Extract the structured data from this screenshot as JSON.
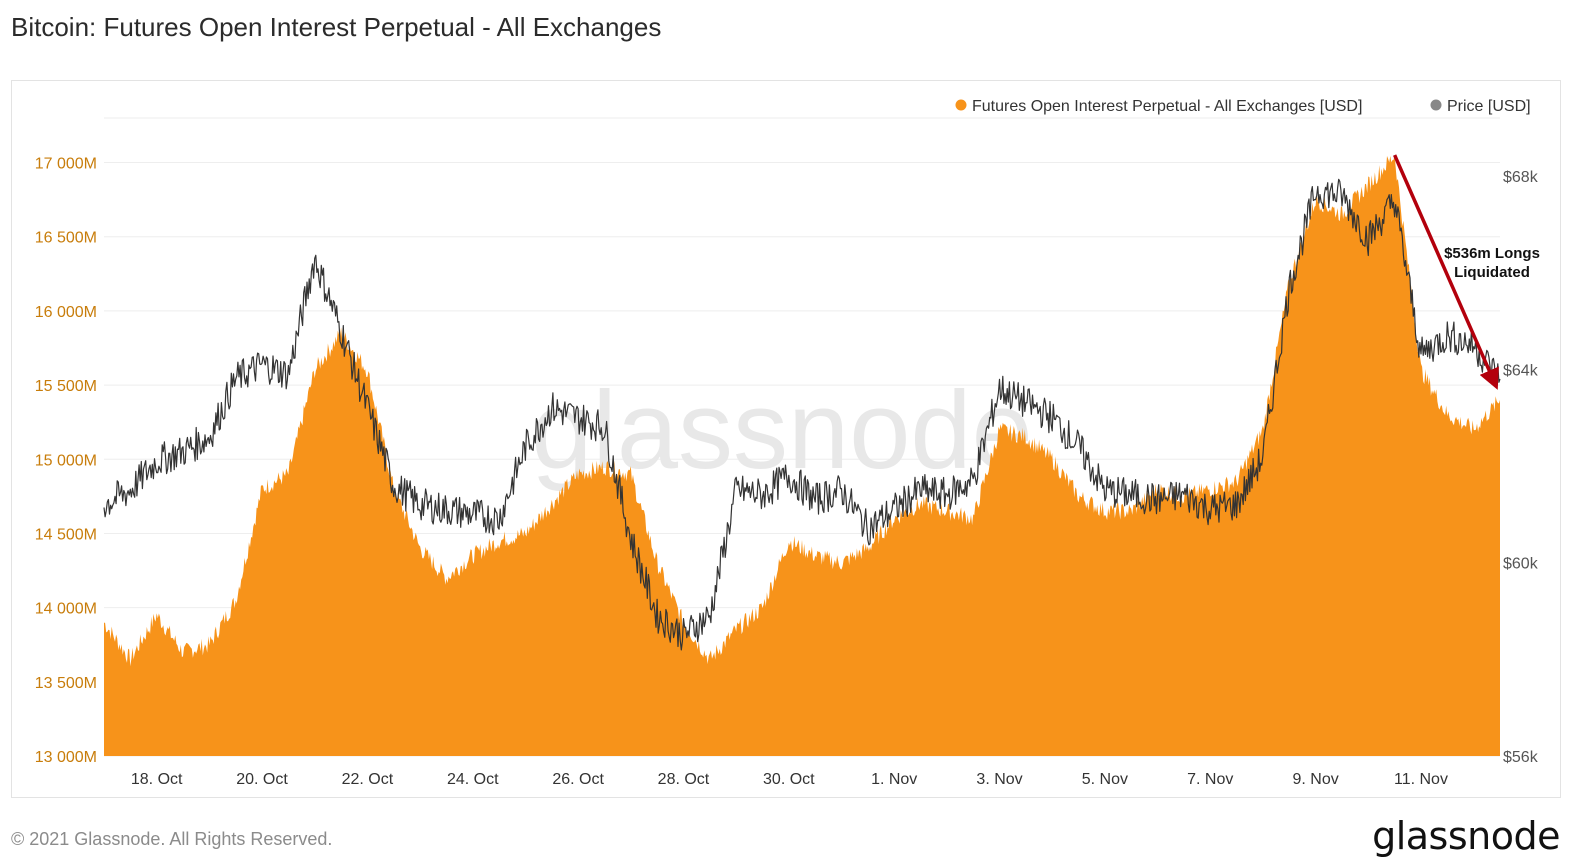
{
  "page": {
    "title": "Bitcoin: Futures Open Interest Perpetual - All Exchanges",
    "copyright": "© 2021 Glassnode. All Rights Reserved.",
    "logo": "glassnode",
    "watermark": "glassnode"
  },
  "colors": {
    "open_interest": "#f7931a",
    "price": "#333333",
    "axis_left": "#c87d0b",
    "axis_right": "#555555",
    "annotation_arrow": "#b3000c",
    "grid": "#eeeeee"
  },
  "chart_data": {
    "type": "area",
    "title": "Bitcoin: Futures Open Interest Perpetual - All Exchanges",
    "legend_position": "top-right",
    "grid": true,
    "x_axis": {
      "ticks": [
        "18. Oct",
        "20. Oct",
        "22. Oct",
        "24. Oct",
        "26. Oct",
        "28. Oct",
        "30. Oct",
        "1. Nov",
        "3. Nov",
        "5. Nov",
        "7. Nov",
        "9. Nov",
        "11. Nov"
      ],
      "range": [
        "2021-10-17",
        "2021-11-12T12:00"
      ]
    },
    "y_left": {
      "ticks": [
        "13 000M",
        "13 500M",
        "14 000M",
        "14 500M",
        "15 000M",
        "15 500M",
        "16 000M",
        "16 500M",
        "17 000M"
      ],
      "range": [
        13000,
        17300
      ],
      "unit": "M USD"
    },
    "y_right": {
      "ticks": [
        "$56k",
        "$60k",
        "$64k",
        "$68k"
      ],
      "range": [
        56000,
        69200
      ],
      "unit": "USD"
    },
    "series": [
      {
        "name": "Futures Open Interest Perpetual - All Exchanges [USD]",
        "axis": "left",
        "x": [
          "2021-10-17",
          "2021-10-17T12:00",
          "2021-10-18",
          "2021-10-18T12:00",
          "2021-10-19",
          "2021-10-19T12:00",
          "2021-10-20",
          "2021-10-20T12:00",
          "2021-10-21",
          "2021-10-21T12:00",
          "2021-10-22",
          "2021-10-22T12:00",
          "2021-10-23",
          "2021-10-23T12:00",
          "2021-10-24",
          "2021-10-24T12:00",
          "2021-10-25",
          "2021-10-25T12:00",
          "2021-10-26",
          "2021-10-26T12:00",
          "2021-10-27",
          "2021-10-27T12:00",
          "2021-10-28",
          "2021-10-28T12:00",
          "2021-10-29",
          "2021-10-29T12:00",
          "2021-10-30",
          "2021-10-30T12:00",
          "2021-10-31",
          "2021-10-31T12:00",
          "2021-11-01",
          "2021-11-01T12:00",
          "2021-11-02",
          "2021-11-02T12:00",
          "2021-11-03",
          "2021-11-03T12:00",
          "2021-11-04",
          "2021-11-04T12:00",
          "2021-11-05",
          "2021-11-05T12:00",
          "2021-11-06",
          "2021-11-06T12:00",
          "2021-11-07",
          "2021-11-07T12:00",
          "2021-11-08",
          "2021-11-08T12:00",
          "2021-11-09",
          "2021-11-09T12:00",
          "2021-11-10",
          "2021-11-10T12:00",
          "2021-11-11",
          "2021-11-11T12:00",
          "2021-11-12",
          "2021-11-12T12:00"
        ],
        "values": [
          13900,
          13650,
          13950,
          13700,
          13750,
          14050,
          14800,
          14900,
          15600,
          15850,
          15600,
          14800,
          14400,
          14200,
          14350,
          14450,
          14500,
          14700,
          14900,
          14950,
          14900,
          14300,
          13900,
          13650,
          13850,
          14000,
          14450,
          14350,
          14300,
          14400,
          14600,
          14700,
          14650,
          14600,
          15200,
          15150,
          15000,
          14750,
          14650,
          14650,
          14800,
          14750,
          14800,
          14850,
          15200,
          16200,
          16750,
          16650,
          16850,
          17050,
          15600,
          15300,
          15200,
          15400
        ]
      },
      {
        "name": "Price [USD]",
        "axis": "right",
        "x": [
          "2021-10-17",
          "2021-10-17T12:00",
          "2021-10-18",
          "2021-10-18T12:00",
          "2021-10-19",
          "2021-10-19T12:00",
          "2021-10-20",
          "2021-10-20T12:00",
          "2021-10-21",
          "2021-10-21T12:00",
          "2021-10-22",
          "2021-10-22T12:00",
          "2021-10-23",
          "2021-10-23T12:00",
          "2021-10-24",
          "2021-10-24T12:00",
          "2021-10-25",
          "2021-10-25T12:00",
          "2021-10-26",
          "2021-10-26T12:00",
          "2021-10-27",
          "2021-10-27T12:00",
          "2021-10-28",
          "2021-10-28T12:00",
          "2021-10-29",
          "2021-10-29T12:00",
          "2021-10-30",
          "2021-10-30T12:00",
          "2021-10-31",
          "2021-10-31T12:00",
          "2021-11-01",
          "2021-11-01T12:00",
          "2021-11-02",
          "2021-11-02T12:00",
          "2021-11-03",
          "2021-11-03T12:00",
          "2021-11-04",
          "2021-11-04T12:00",
          "2021-11-05",
          "2021-11-05T12:00",
          "2021-11-06",
          "2021-11-06T12:00",
          "2021-11-07",
          "2021-11-07T12:00",
          "2021-11-08",
          "2021-11-08T12:00",
          "2021-11-09",
          "2021-11-09T12:00",
          "2021-11-10",
          "2021-11-10T12:00",
          "2021-11-11",
          "2021-11-11T12:00",
          "2021-11-12",
          "2021-11-12T12:00"
        ],
        "values": [
          61200,
          61500,
          62100,
          62300,
          62600,
          63800,
          64100,
          63900,
          66300,
          64800,
          63200,
          61600,
          61200,
          61100,
          61000,
          60900,
          62400,
          63200,
          63000,
          62800,
          60500,
          58900,
          58500,
          58900,
          61500,
          61400,
          61800,
          61300,
          61500,
          60700,
          61100,
          61500,
          61400,
          61700,
          63600,
          63300,
          63000,
          62400,
          61500,
          61400,
          61300,
          61400,
          61100,
          61200,
          62200,
          65700,
          67700,
          67600,
          66700,
          67500,
          64300,
          64700,
          64500,
          63800
        ]
      }
    ],
    "annotations": [
      {
        "text": [
          "$536m Longs",
          "Liquidated"
        ],
        "type": "arrow",
        "from": {
          "x": "2021-11-10T12:00",
          "y": 17050
        },
        "to": {
          "x": "2021-11-12T10:00",
          "y": 15500
        }
      }
    ]
  }
}
